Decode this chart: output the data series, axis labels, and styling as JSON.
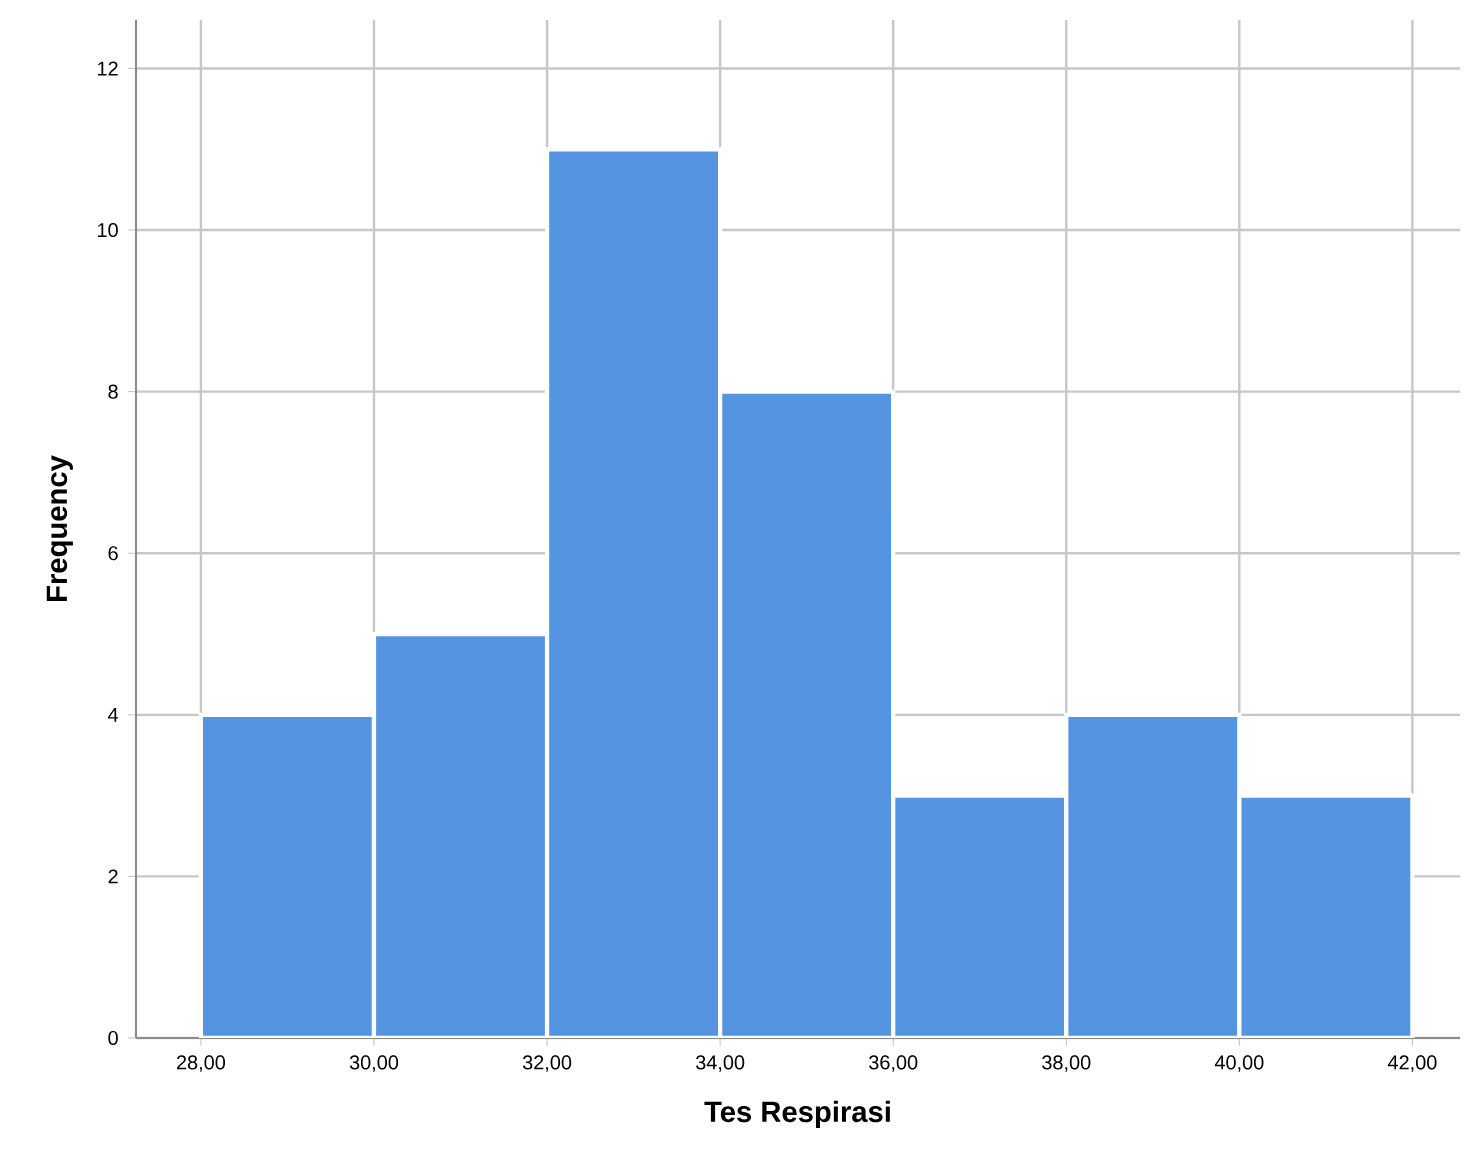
{
  "chart_data": {
    "type": "histogram",
    "xlabel": "Tes Respirasi",
    "ylabel": "Frequency",
    "bins": [
      28,
      30,
      32,
      34,
      36,
      38,
      40,
      42
    ],
    "values": [
      4,
      5,
      11,
      8,
      3,
      4,
      3
    ],
    "color": "#5594e0",
    "xlim": [
      27.25,
      42.55
    ],
    "ylim": [
      0,
      12.6
    ],
    "xticks": [
      {
        "value": 28,
        "label": "28,00"
      },
      {
        "value": 30,
        "label": "30,00"
      },
      {
        "value": 32,
        "label": "32,00"
      },
      {
        "value": 34,
        "label": "34,00"
      },
      {
        "value": 36,
        "label": "36,00"
      },
      {
        "value": 38,
        "label": "38,00"
      },
      {
        "value": 40,
        "label": "40,00"
      },
      {
        "value": 42,
        "label": "42,00"
      }
    ],
    "yticks": [
      0,
      2,
      4,
      6,
      8,
      10,
      12
    ],
    "grid": true
  }
}
